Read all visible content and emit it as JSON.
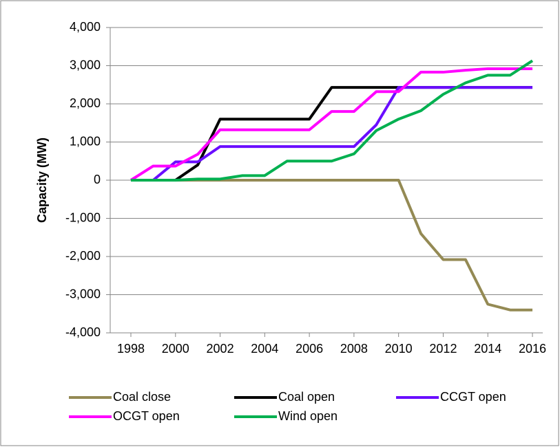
{
  "chart_data": {
    "type": "line",
    "y_label": "Capacity (MW)",
    "categories": [
      "1998",
      null,
      "2000",
      null,
      "2002",
      null,
      "2004",
      null,
      "2006",
      null,
      "2008",
      null,
      "2010",
      null,
      "2012",
      null,
      "2014",
      null,
      "2016"
    ],
    "series": [
      {
        "name": "Coal close",
        "color": "#948a54",
        "values": [
          0,
          0,
          0,
          0,
          0,
          0,
          0,
          0,
          0,
          0,
          0,
          0,
          0,
          -1400,
          -2080,
          -2080,
          -3250,
          -3400,
          -3400
        ]
      },
      {
        "name": "Coal open",
        "color": "#000000",
        "values": [
          0,
          0,
          0,
          400,
          1600,
          1600,
          1600,
          1600,
          1600,
          2430,
          2430,
          2430,
          2430,
          2430,
          2430,
          2430,
          2430,
          2430,
          2430
        ]
      },
      {
        "name": "CCGT open",
        "color": "#6a0dff",
        "values": [
          0,
          0,
          480,
          480,
          880,
          880,
          880,
          880,
          880,
          880,
          880,
          1450,
          2430,
          2430,
          2430,
          2430,
          2430,
          2430,
          2430
        ]
      },
      {
        "name": "OCGT open",
        "color": "#ff00ff",
        "values": [
          0,
          370,
          370,
          680,
          1320,
          1320,
          1320,
          1320,
          1320,
          1800,
          1800,
          2320,
          2320,
          2830,
          2830,
          2880,
          2920,
          2920,
          2920
        ]
      },
      {
        "name": "Wind open",
        "color": "#00b050",
        "values": [
          0,
          0,
          0,
          30,
          30,
          120,
          120,
          500,
          500,
          500,
          690,
          1300,
          1600,
          1820,
          2250,
          2550,
          2750,
          2750,
          3130
        ]
      }
    ],
    "ylim": [
      -4000,
      4000
    ],
    "yticks": [
      {
        "value": -4000,
        "label": "-4,000"
      },
      {
        "value": -3000,
        "label": "-3,000"
      },
      {
        "value": -2000,
        "label": "-2,000"
      },
      {
        "value": -1000,
        "label": "-1,000"
      },
      0,
      {
        "value": 1000,
        "label": "1,000"
      },
      {
        "value": 2000,
        "label": "2,000"
      },
      {
        "value": 3000,
        "label": "3,000"
      },
      {
        "value": 4000,
        "label": "4,000"
      }
    ],
    "grid": true,
    "legend": "bottom"
  }
}
